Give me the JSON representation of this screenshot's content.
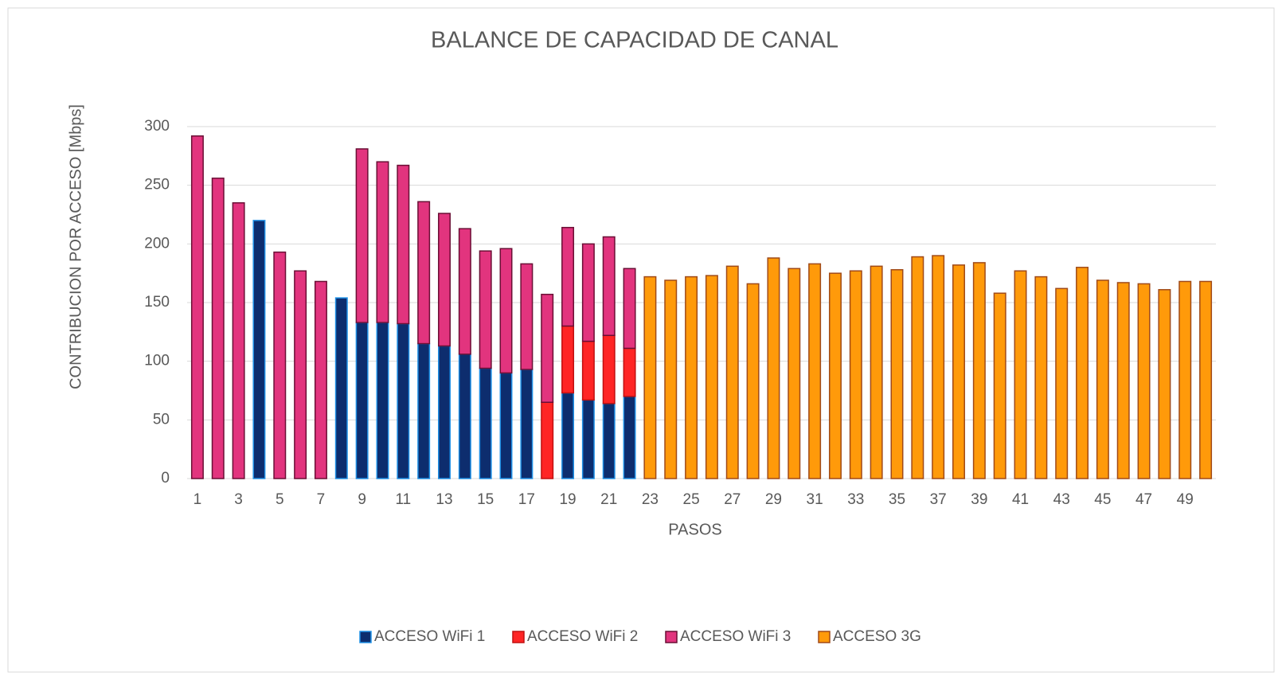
{
  "chart_data": {
    "type": "stacked_bar",
    "title": "BALANCE DE CAPACIDAD DE CANAL",
    "x_label": "PASOS",
    "y_label": "CONTRIBUCION POR ACCESO [Mbps]",
    "categories": [
      1,
      null,
      3,
      null,
      5,
      null,
      7,
      null,
      9,
      null,
      11,
      null,
      13,
      null,
      15,
      null,
      17,
      null,
      19,
      null,
      21,
      null,
      23,
      null,
      25,
      null,
      27,
      null,
      29,
      null,
      31,
      null,
      33,
      null,
      35,
      null,
      37,
      null,
      39,
      null,
      41,
      null,
      43,
      null,
      45,
      null,
      47,
      null,
      49,
      null
    ],
    "series": [
      {
        "name": "ACCESO WiFi 1",
        "color": "#0d2d6e",
        "values": [
          0,
          0,
          0,
          220,
          0,
          0,
          0,
          154,
          133,
          133,
          132,
          115,
          113,
          106,
          94,
          90,
          93,
          0,
          73,
          67,
          64,
          70,
          0,
          0,
          0,
          0,
          0,
          0,
          0,
          0,
          0,
          0,
          0,
          0,
          0,
          0,
          0,
          0,
          0,
          0,
          0,
          0,
          0,
          0,
          0,
          0,
          0,
          0,
          0,
          0
        ]
      },
      {
        "name": "ACCESO WiFi 2",
        "color": "#ff2525",
        "values": [
          0,
          0,
          0,
          0,
          0,
          0,
          0,
          0,
          0,
          0,
          0,
          0,
          0,
          0,
          0,
          0,
          0,
          65,
          57,
          50,
          58,
          41,
          0,
          0,
          0,
          0,
          0,
          0,
          0,
          0,
          0,
          0,
          0,
          0,
          0,
          0,
          0,
          0,
          0,
          0,
          0,
          0,
          0,
          0,
          0,
          0,
          0,
          0,
          0,
          0
        ]
      },
      {
        "name": "ACCESO WiFi 3",
        "color": "#e2347e",
        "values": [
          292,
          256,
          235,
          0,
          193,
          177,
          168,
          0,
          148,
          137,
          135,
          121,
          113,
          107,
          100,
          106,
          90,
          92,
          84,
          83,
          84,
          68,
          0,
          0,
          0,
          0,
          0,
          0,
          0,
          0,
          0,
          0,
          0,
          0,
          0,
          0,
          0,
          0,
          0,
          0,
          0,
          0,
          0,
          0,
          0,
          0,
          0,
          0,
          0,
          0
        ]
      },
      {
        "name": "ACCESO 3G",
        "color": "#ff9a0a",
        "values": [
          0,
          0,
          0,
          0,
          0,
          0,
          0,
          0,
          0,
          0,
          0,
          0,
          0,
          0,
          0,
          0,
          0,
          0,
          0,
          0,
          0,
          0,
          172,
          169,
          172,
          173,
          181,
          166,
          188,
          179,
          183,
          175,
          177,
          181,
          178,
          189,
          190,
          182,
          184,
          158,
          177,
          172,
          162,
          180,
          169,
          167,
          166,
          161,
          168,
          168
        ]
      }
    ],
    "ylim": [
      0,
      300
    ],
    "yticks": [
      0,
      50,
      100,
      150,
      200,
      250,
      300
    ],
    "grid": true,
    "legend": "bottom"
  }
}
